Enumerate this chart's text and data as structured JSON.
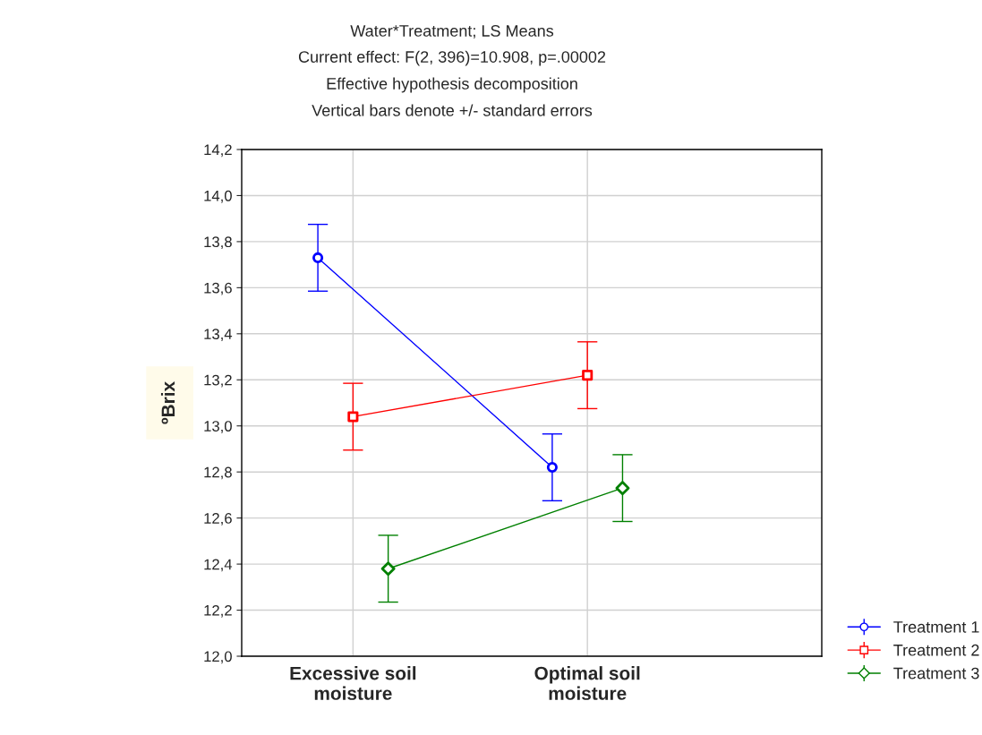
{
  "chart_data": {
    "type": "line",
    "title": "Water*Treatment; LS Means",
    "subtitle": "Current effect: F(2, 396)=10.908, p=.00002\nEffective hypothesis decomposition\nVertical bars denote +/- standard errors",
    "ylabel": "ºBrix",
    "categories": [
      "Excessive soil\nmoisture",
      "Optimal soil\nmoisture"
    ],
    "series": [
      {
        "name": "Treatment 1",
        "color": "#0000ff",
        "marker": "circle",
        "values": [
          13.73,
          12.82
        ],
        "errors": [
          0.145,
          0.145
        ]
      },
      {
        "name": "Treatment 2",
        "color": "#ff0000",
        "marker": "square",
        "values": [
          13.04,
          13.22
        ],
        "errors": [
          0.145,
          0.145
        ]
      },
      {
        "name": "Treatment 3",
        "color": "#008000",
        "marker": "diamond",
        "values": [
          12.38,
          12.73
        ],
        "errors": [
          0.145,
          0.145
        ]
      }
    ],
    "ylim": [
      12.0,
      14.2
    ],
    "yticks": [
      {
        "value": 12.0,
        "label": "12,0"
      },
      {
        "value": 12.2,
        "label": "12,2"
      },
      {
        "value": 12.4,
        "label": "12,4"
      },
      {
        "value": 12.6,
        "label": "12,6"
      },
      {
        "value": 12.8,
        "label": "12,8"
      },
      {
        "value": 13.0,
        "label": "13,0"
      },
      {
        "value": 13.2,
        "label": "13,2"
      },
      {
        "value": 13.4,
        "label": "13,4"
      },
      {
        "value": 13.6,
        "label": "13,6"
      },
      {
        "value": 13.8,
        "label": "13,8"
      },
      {
        "value": 14.0,
        "label": "14,0"
      },
      {
        "value": 14.2,
        "label": "14,2"
      }
    ],
    "grid": true,
    "legend": "bottom right",
    "line_style": "solid"
  }
}
